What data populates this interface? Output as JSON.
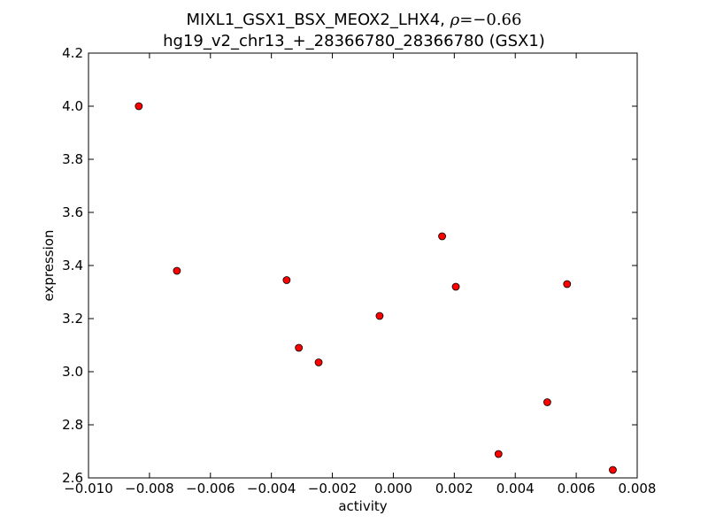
{
  "chart_data": {
    "type": "scatter",
    "title_name": "MIXL1_GSX1_BSX_MEOX2_LHX4,",
    "title_rho_symbol": "ρ",
    "title_rho_value": "=−0.66",
    "subtitle": "hg19_v2_chr13_+_28366780_28366780 (GSX1)",
    "xlabel": "activity",
    "ylabel": "expression",
    "xlim": [
      -0.01,
      0.008
    ],
    "ylim": [
      2.6,
      4.2
    ],
    "xticks": [
      -0.01,
      -0.008,
      -0.006,
      -0.004,
      -0.002,
      0.0,
      0.002,
      0.004,
      0.006,
      0.008
    ],
    "xtick_labels": [
      "−0.010",
      "−0.008",
      "−0.006",
      "−0.004",
      "−0.002",
      "0.000",
      "0.002",
      "0.004",
      "0.006",
      "0.008"
    ],
    "yticks": [
      2.6,
      2.8,
      3.0,
      3.2,
      3.4,
      3.6,
      3.8,
      4.0,
      4.2
    ],
    "ytick_labels": [
      "2.6",
      "2.8",
      "3.0",
      "3.2",
      "3.4",
      "3.6",
      "3.8",
      "4.0",
      "4.2"
    ],
    "grid": false,
    "marker_color": "#ff0000",
    "marker_edge": "#000000",
    "points": [
      {
        "x": -0.00835,
        "y": 4.0
      },
      {
        "x": -0.0071,
        "y": 3.38
      },
      {
        "x": -0.0035,
        "y": 3.345
      },
      {
        "x": -0.0031,
        "y": 3.09
      },
      {
        "x": -0.00245,
        "y": 3.035
      },
      {
        "x": -0.00045,
        "y": 3.21
      },
      {
        "x": 0.0016,
        "y": 3.51
      },
      {
        "x": 0.00205,
        "y": 3.32
      },
      {
        "x": 0.00345,
        "y": 2.69
      },
      {
        "x": 0.00505,
        "y": 2.885
      },
      {
        "x": 0.0057,
        "y": 3.33
      },
      {
        "x": 0.0072,
        "y": 2.63
      }
    ]
  }
}
